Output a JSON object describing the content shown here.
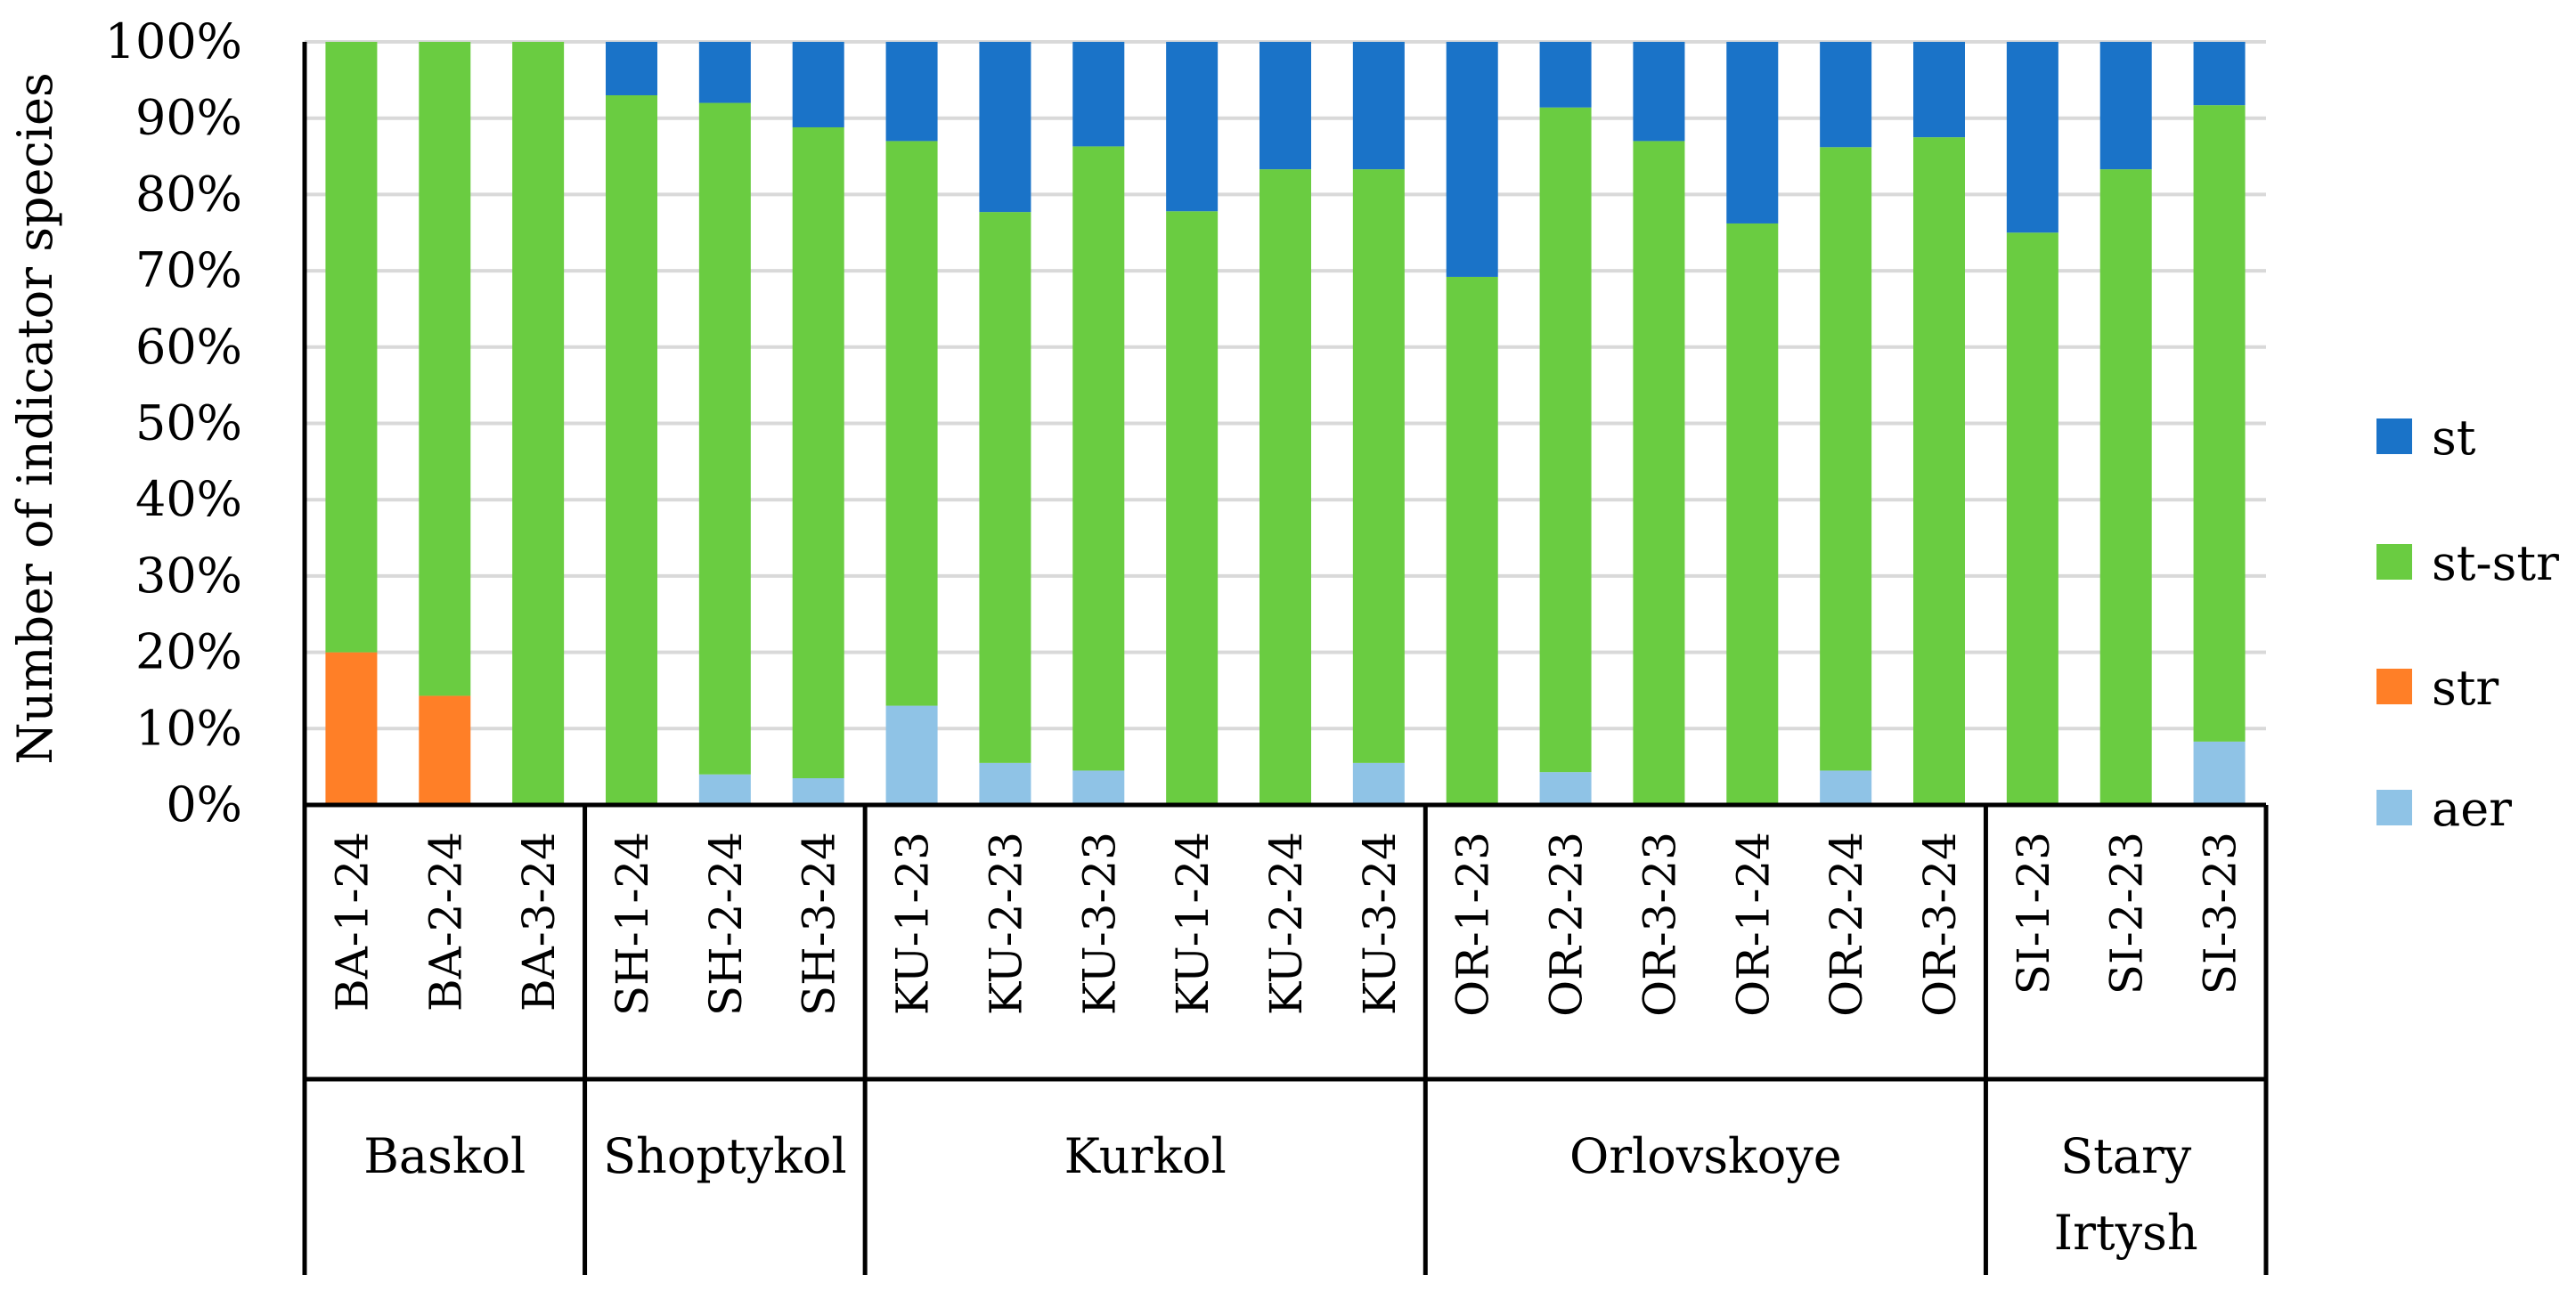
{
  "chart_data": {
    "type": "bar",
    "stacked": true,
    "percent_stacked": true,
    "title": "",
    "ylabel": "Number of indicator species",
    "xlabel": "",
    "ylim": [
      0,
      100
    ],
    "y_ticks": [
      "0%",
      "10%",
      "20%",
      "30%",
      "40%",
      "50%",
      "60%",
      "70%",
      "80%",
      "90%",
      "100%"
    ],
    "grid": "horizontal",
    "legend_position": "right",
    "categories": [
      "BA-1-24",
      "BA-2-24",
      "BA-3-24",
      "SH-1-24",
      "SH-2-24",
      "SH-3-24",
      "KU-1-23",
      "KU-2-23",
      "KU-3-23",
      "KU-1-24",
      "KU-2-24",
      "KU-3-24",
      "OR-1-23",
      "OR-2-23",
      "OR-3-23",
      "OR-1-24",
      "OR-2-24",
      "OR-3-24",
      "SI-1-23",
      "SI-2-23",
      "SI-3-23"
    ],
    "groups": [
      {
        "name": "Baskol",
        "lines": [
          "Baskol"
        ],
        "count": 3
      },
      {
        "name": "Shoptykol",
        "lines": [
          "Shoptykol"
        ],
        "count": 3
      },
      {
        "name": "Kurkol",
        "lines": [
          "Kurkol"
        ],
        "count": 6
      },
      {
        "name": "Orlovskoye",
        "lines": [
          "Orlovskoye"
        ],
        "count": 6
      },
      {
        "name": "Stary Irtysh",
        "lines": [
          "Stary",
          "Irtysh"
        ],
        "count": 3
      }
    ],
    "series": [
      {
        "name": "aer",
        "color": "#8FC3E6",
        "values": [
          0,
          0,
          0,
          0,
          4,
          3.5,
          13,
          5.5,
          4.5,
          0,
          0,
          5.5,
          0,
          4.3,
          0,
          0,
          4.5,
          0,
          0,
          0,
          8.3
        ]
      },
      {
        "name": "str",
        "color": "#FF7F27",
        "values": [
          20,
          14.3,
          0,
          0,
          0,
          0,
          0,
          0,
          0,
          0,
          0,
          0,
          0,
          0,
          0,
          0,
          0,
          0,
          0,
          0,
          0
        ]
      },
      {
        "name": "st-str",
        "color": "#6ACC41",
        "values": [
          80,
          85.7,
          100,
          93,
          88,
          85.3,
          74,
          72.2,
          81.8,
          77.8,
          83.3,
          77.8,
          69.2,
          87.1,
          87,
          76.2,
          81.7,
          87.5,
          75,
          83.3,
          83.4
        ]
      },
      {
        "name": "st",
        "color": "#1A73C8",
        "values": [
          0,
          0,
          0,
          7,
          8,
          11.2,
          13,
          22.3,
          13.7,
          22.2,
          16.7,
          16.7,
          30.8,
          8.6,
          13,
          23.8,
          13.8,
          12.5,
          25,
          16.7,
          8.3
        ]
      }
    ],
    "legend_order": [
      "st",
      "st-str",
      "str",
      "aer"
    ]
  }
}
